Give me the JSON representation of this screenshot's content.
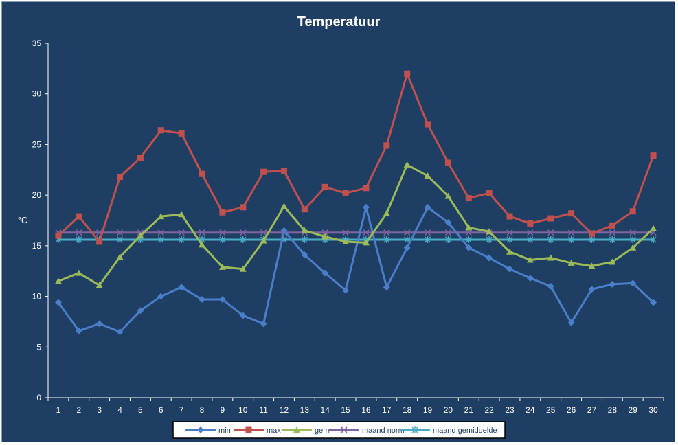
{
  "chart_data": {
    "type": "line",
    "title": "Temperatuur",
    "xlabel": "",
    "ylabel": "°C",
    "ylim": [
      0,
      35
    ],
    "yticks": [
      0,
      5,
      10,
      15,
      20,
      25,
      30,
      35
    ],
    "grid": false,
    "legend_position": "bottom",
    "x": [
      1,
      2,
      3,
      4,
      5,
      6,
      7,
      8,
      9,
      10,
      11,
      12,
      13,
      14,
      15,
      16,
      17,
      18,
      19,
      20,
      21,
      22,
      23,
      24,
      25,
      26,
      27,
      28,
      29,
      30
    ],
    "series": [
      {
        "name": "min",
        "color": "#4a7ec8",
        "marker": "diamond",
        "values": [
          9.4,
          6.6,
          7.3,
          6.5,
          8.6,
          10.0,
          10.9,
          9.7,
          9.7,
          8.1,
          7.3,
          16.5,
          14.1,
          12.3,
          10.6,
          18.8,
          10.9,
          14.8,
          18.8,
          17.3,
          14.8,
          13.8,
          12.7,
          11.8,
          11.0,
          7.4,
          10.7,
          11.2,
          11.3,
          9.4
        ]
      },
      {
        "name": "max",
        "color": "#c0504d",
        "marker": "square",
        "values": [
          16.0,
          17.9,
          15.4,
          21.8,
          23.7,
          26.4,
          26.1,
          22.1,
          18.3,
          18.8,
          22.3,
          22.4,
          18.6,
          20.8,
          20.2,
          20.7,
          24.9,
          32.0,
          27.0,
          23.2,
          19.7,
          20.2,
          17.9,
          17.2,
          17.7,
          18.2,
          16.2,
          17.0,
          18.4,
          23.9
        ]
      },
      {
        "name": "gem",
        "color": "#9bbb59",
        "marker": "triangle",
        "values": [
          11.5,
          12.3,
          11.1,
          13.9,
          16.0,
          17.9,
          18.1,
          15.1,
          12.9,
          12.7,
          15.5,
          18.9,
          16.5,
          15.9,
          15.4,
          15.3,
          18.2,
          23.0,
          21.9,
          19.9,
          16.8,
          16.4,
          14.4,
          13.6,
          13.8,
          13.3,
          13.0,
          13.4,
          14.8,
          16.7
        ]
      },
      {
        "name": "maand norm",
        "color": "#8064a2",
        "marker": "x",
        "values": [
          16.3,
          16.3,
          16.3,
          16.3,
          16.3,
          16.3,
          16.3,
          16.3,
          16.3,
          16.3,
          16.3,
          16.3,
          16.3,
          16.3,
          16.3,
          16.3,
          16.3,
          16.3,
          16.3,
          16.3,
          16.3,
          16.3,
          16.3,
          16.3,
          16.3,
          16.3,
          16.3,
          16.3,
          16.3,
          16.3
        ]
      },
      {
        "name": "maand gemiddelde",
        "color": "#4bacc6",
        "marker": "star",
        "values": [
          15.6,
          15.6,
          15.6,
          15.6,
          15.6,
          15.6,
          15.6,
          15.6,
          15.6,
          15.6,
          15.6,
          15.6,
          15.6,
          15.6,
          15.6,
          15.6,
          15.6,
          15.6,
          15.6,
          15.6,
          15.6,
          15.6,
          15.6,
          15.6,
          15.6,
          15.6,
          15.6,
          15.6,
          15.6,
          15.6
        ]
      }
    ]
  },
  "colors": {
    "background": "#1e3f63",
    "axis": "#ffffff",
    "text": "#ffffff"
  }
}
